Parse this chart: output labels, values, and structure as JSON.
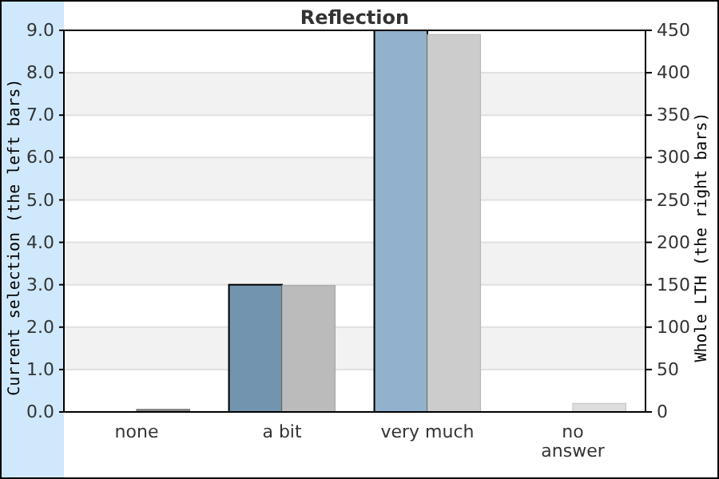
{
  "chart_data": {
    "type": "bar",
    "title": "Reflection",
    "categories": [
      "none",
      "a bit",
      "very much",
      "no answer"
    ],
    "ylabel": "Current selection (the left bars)",
    "y2label": "Whole LTH (the right bars)",
    "series": [
      {
        "values": [
          0,
          3.0,
          9.0,
          0
        ],
        "colors": [
          "#7394ae",
          "#7394ae",
          "#91b1cc",
          "#91b1cc"
        ]
      },
      {
        "values": [
          3,
          149,
          445,
          10
        ],
        "colors": [
          "#888888",
          "#bbbbbb",
          "#cccccc",
          "#dddddd"
        ],
        "axis": "y2"
      }
    ],
    "ylim": [
      0,
      9
    ],
    "yticks": [
      {
        "value": 0,
        "label": "0.0"
      },
      {
        "value": 1,
        "label": "1.0"
      },
      {
        "value": 2,
        "label": "2.0"
      },
      {
        "value": 3,
        "label": "3.0"
      },
      {
        "value": 4,
        "label": "4.0"
      },
      {
        "value": 5,
        "label": "5.0"
      },
      {
        "value": 6,
        "label": "6.0"
      },
      {
        "value": 7,
        "label": "7.0"
      },
      {
        "value": 8,
        "label": "8.0"
      },
      {
        "value": 9,
        "label": "9.0"
      }
    ],
    "y2lim": [
      0,
      450
    ],
    "y2ticks": [
      0,
      50,
      100,
      150,
      200,
      250,
      300,
      350,
      400,
      450
    ],
    "grid": "y"
  }
}
